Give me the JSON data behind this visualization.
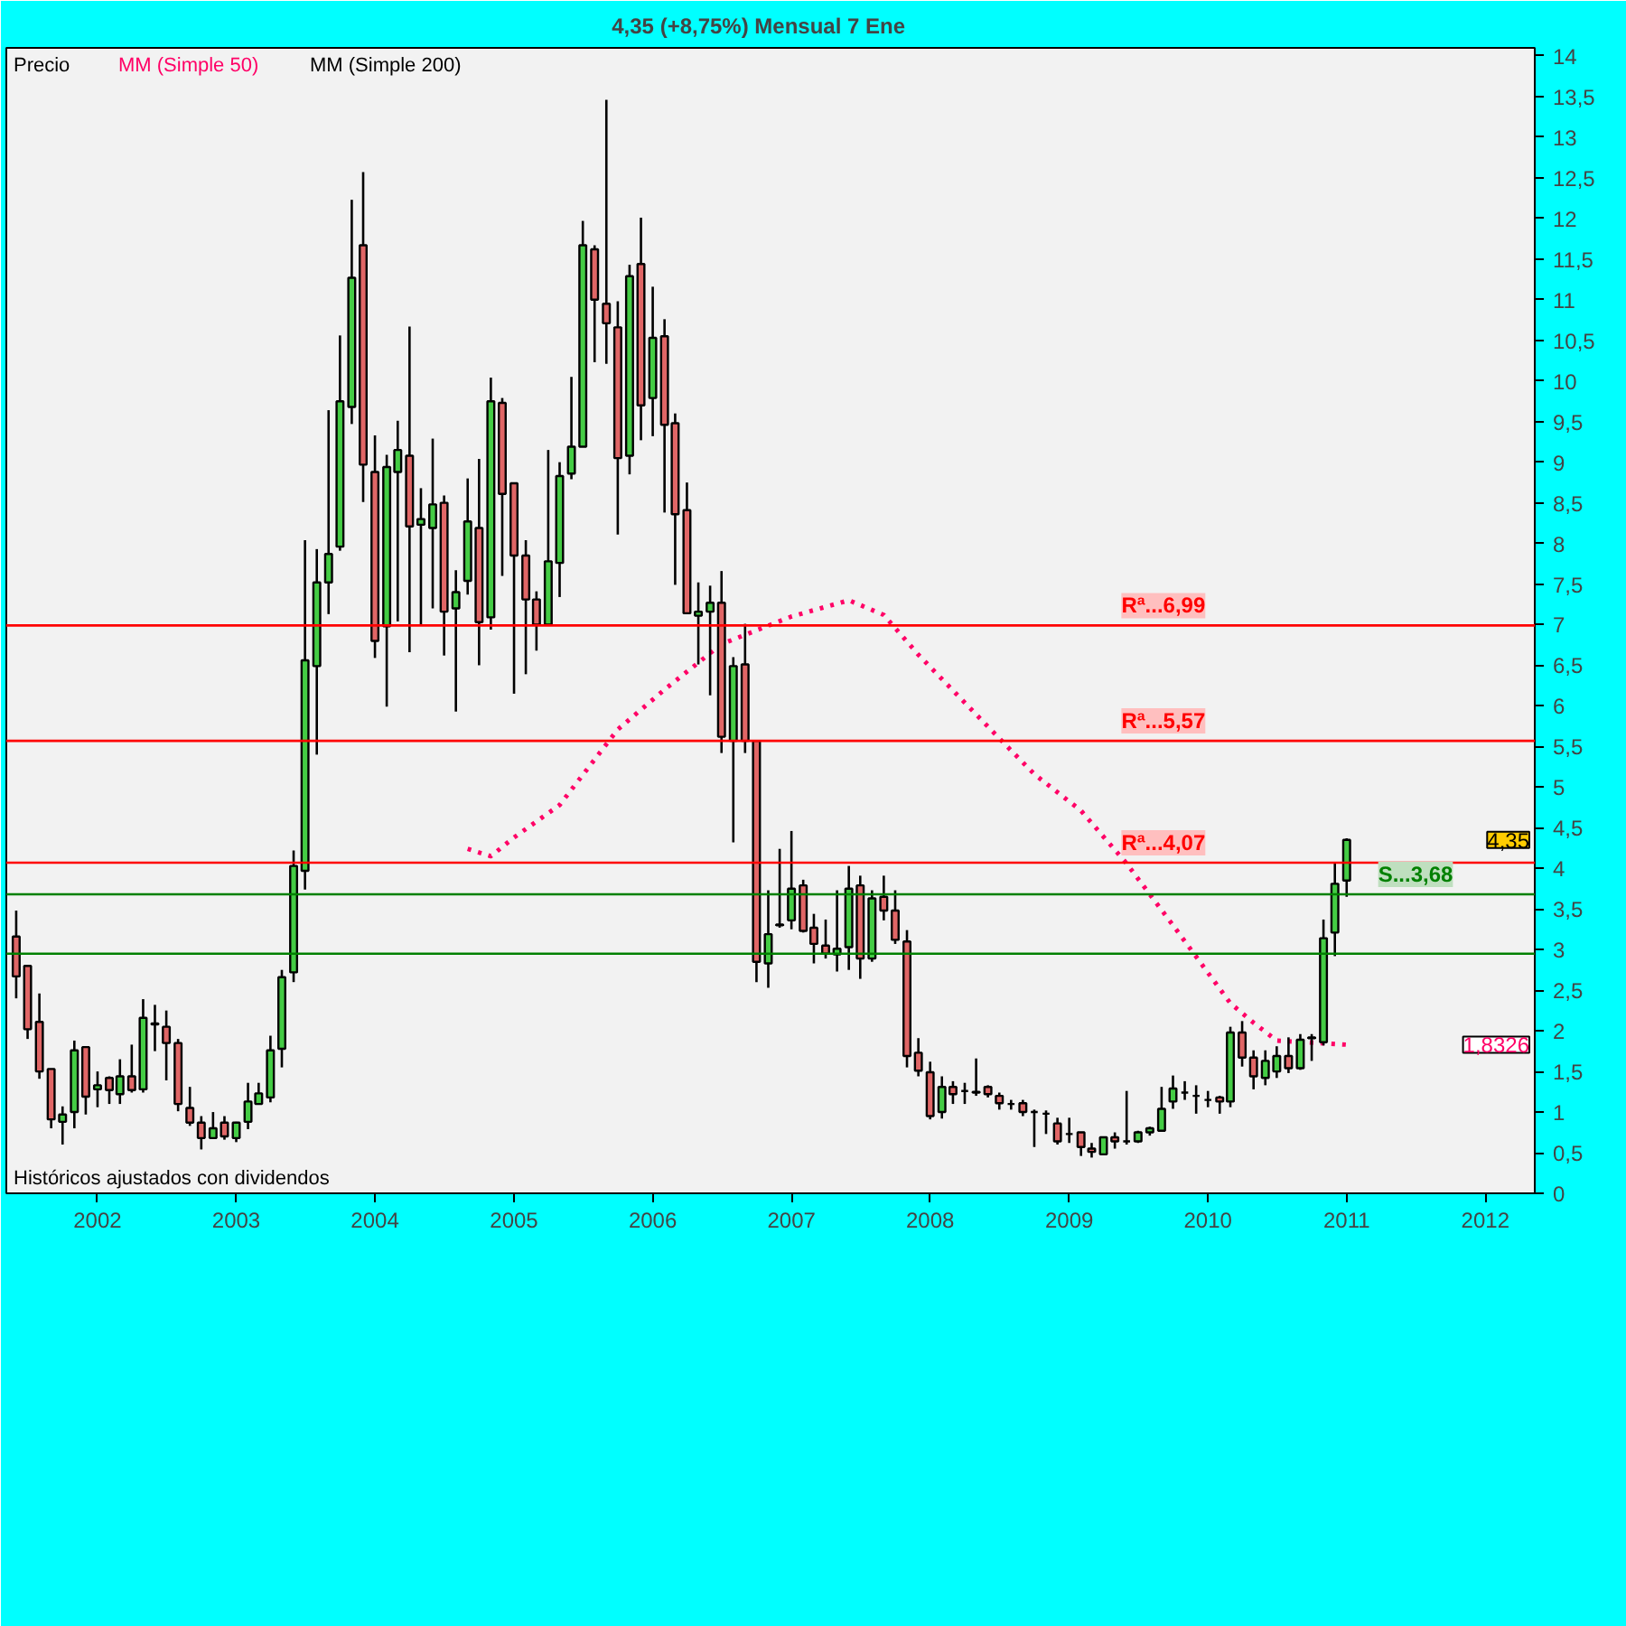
{
  "chart_data": {
    "type": "candlestick",
    "title": "4,35 (+8,75%)    Mensual  7 Ene",
    "x": [
      "2001-06",
      "2001-07",
      "2001-08",
      "2001-09",
      "2001-10",
      "2001-11",
      "2001-12",
      "2002-01",
      "2002-02",
      "2002-03",
      "2002-04",
      "2002-05",
      "2002-06",
      "2002-07",
      "2002-08",
      "2002-09",
      "2002-10",
      "2002-11",
      "2002-12",
      "2003-01",
      "2003-02",
      "2003-03",
      "2003-04",
      "2003-05",
      "2003-06",
      "2003-07",
      "2003-08",
      "2003-09",
      "2003-10",
      "2003-11",
      "2003-12",
      "2004-01",
      "2004-02",
      "2004-03",
      "2004-04",
      "2004-05",
      "2004-06",
      "2004-07",
      "2004-08",
      "2004-09",
      "2004-10",
      "2004-11",
      "2004-12",
      "2005-01",
      "2005-02",
      "2005-03",
      "2005-04",
      "2005-05",
      "2005-06",
      "2005-07",
      "2005-08",
      "2005-09",
      "2005-10",
      "2005-11",
      "2005-12",
      "2006-01",
      "2006-02",
      "2006-03",
      "2006-04",
      "2006-05",
      "2006-06",
      "2006-07",
      "2006-08",
      "2006-09",
      "2006-10",
      "2006-11",
      "2006-12",
      "2007-01",
      "2007-02",
      "2007-03",
      "2007-04",
      "2007-05",
      "2007-06",
      "2007-07",
      "2007-08",
      "2007-09",
      "2007-10",
      "2007-11",
      "2007-12",
      "2008-01",
      "2008-02",
      "2008-03",
      "2008-04",
      "2008-05",
      "2008-06",
      "2008-07",
      "2008-08",
      "2008-09",
      "2008-10",
      "2008-11",
      "2008-12",
      "2009-01",
      "2009-02",
      "2009-03",
      "2009-04",
      "2009-05",
      "2009-06",
      "2009-07",
      "2009-08",
      "2009-09",
      "2009-10",
      "2009-11",
      "2009-12",
      "2010-01",
      "2010-02",
      "2010-03",
      "2010-04",
      "2010-05",
      "2010-06",
      "2010-07",
      "2010-08",
      "2010-09",
      "2010-10",
      "2010-11",
      "2010-12",
      "2011-01"
    ],
    "ohlc": [
      [
        3.16,
        3.48,
        2.4,
        2.67
      ],
      [
        2.8,
        2.8,
        1.9,
        2.02
      ],
      [
        2.11,
        2.46,
        1.41,
        1.5
      ],
      [
        1.53,
        1.53,
        0.8,
        0.91
      ],
      [
        0.88,
        1.07,
        0.6,
        0.97
      ],
      [
        1.0,
        1.88,
        0.8,
        1.76
      ],
      [
        1.8,
        1.8,
        0.97,
        1.19
      ],
      [
        1.28,
        1.5,
        1.06,
        1.33
      ],
      [
        1.42,
        1.44,
        1.1,
        1.27
      ],
      [
        1.22,
        1.65,
        1.1,
        1.44
      ],
      [
        1.44,
        1.83,
        1.24,
        1.27
      ],
      [
        1.28,
        2.39,
        1.24,
        2.16
      ],
      [
        2.08,
        2.32,
        1.75,
        2.09
      ],
      [
        2.05,
        2.25,
        1.39,
        1.85
      ],
      [
        1.85,
        1.9,
        1.01,
        1.1
      ],
      [
        1.05,
        1.31,
        0.83,
        0.87
      ],
      [
        0.87,
        0.95,
        0.54,
        0.68
      ],
      [
        0.68,
        1.0,
        0.68,
        0.8
      ],
      [
        0.87,
        0.95,
        0.66,
        0.7
      ],
      [
        0.68,
        0.88,
        0.63,
        0.87
      ],
      [
        0.88,
        1.36,
        0.79,
        1.13
      ],
      [
        1.1,
        1.36,
        1.1,
        1.23
      ],
      [
        1.18,
        1.94,
        1.12,
        1.76
      ],
      [
        1.78,
        2.75,
        1.55,
        2.66
      ],
      [
        2.72,
        4.22,
        2.6,
        4.03
      ],
      [
        3.97,
        8.04,
        3.74,
        6.56
      ],
      [
        6.49,
        7.93,
        5.4,
        7.52
      ],
      [
        7.52,
        9.64,
        7.13,
        7.87
      ],
      [
        7.96,
        10.56,
        7.91,
        9.75
      ],
      [
        9.68,
        12.23,
        9.47,
        11.27
      ],
      [
        11.67,
        12.57,
        8.51,
        8.97
      ],
      [
        8.88,
        9.33,
        6.59,
        6.8
      ],
      [
        6.98,
        9.09,
        5.99,
        8.94
      ],
      [
        8.88,
        9.51,
        7.04,
        9.15
      ],
      [
        9.08,
        10.67,
        6.66,
        8.21
      ],
      [
        8.23,
        8.68,
        7.0,
        8.3
      ],
      [
        8.19,
        9.29,
        7.2,
        8.48
      ],
      [
        8.5,
        8.59,
        6.62,
        7.16
      ],
      [
        7.2,
        7.67,
        5.93,
        7.4
      ],
      [
        7.54,
        8.8,
        7.37,
        8.27
      ],
      [
        8.19,
        9.04,
        6.5,
        7.03
      ],
      [
        7.09,
        10.04,
        6.94,
        9.75
      ],
      [
        9.73,
        9.79,
        7.6,
        8.61
      ],
      [
        8.74,
        8.74,
        6.15,
        7.85
      ],
      [
        7.85,
        8.04,
        6.39,
        7.31
      ],
      [
        7.31,
        7.41,
        6.68,
        7.0
      ],
      [
        7.0,
        9.15,
        7.0,
        7.78
      ],
      [
        7.76,
        9.0,
        7.34,
        8.83
      ],
      [
        8.86,
        10.05,
        8.79,
        9.19
      ],
      [
        9.19,
        11.97,
        9.19,
        11.67
      ],
      [
        11.62,
        11.67,
        10.23,
        11.0
      ],
      [
        10.95,
        13.46,
        10.21,
        10.71
      ],
      [
        10.66,
        10.98,
        8.11,
        9.05
      ],
      [
        9.08,
        11.43,
        8.85,
        11.29
      ],
      [
        11.44,
        12.01,
        9.27,
        9.7
      ],
      [
        9.79,
        11.16,
        9.32,
        10.53
      ],
      [
        10.55,
        10.76,
        8.38,
        9.46
      ],
      [
        9.48,
        9.6,
        7.49,
        8.36
      ],
      [
        8.41,
        8.75,
        7.14,
        7.14
      ],
      [
        7.11,
        7.52,
        6.51,
        7.16
      ],
      [
        7.16,
        7.48,
        6.13,
        7.27
      ],
      [
        7.27,
        7.66,
        5.42,
        5.62
      ],
      [
        5.57,
        6.6,
        4.32,
        6.49
      ],
      [
        6.51,
        7.01,
        5.42,
        5.57
      ],
      [
        5.57,
        5.57,
        2.6,
        2.85
      ],
      [
        2.83,
        3.73,
        2.53,
        3.19
      ],
      [
        3.3,
        4.24,
        3.27,
        3.31
      ],
      [
        3.36,
        4.46,
        3.25,
        3.75
      ],
      [
        3.79,
        3.86,
        3.21,
        3.23
      ],
      [
        3.27,
        3.44,
        2.83,
        3.07
      ],
      [
        3.05,
        3.37,
        2.89,
        2.95
      ],
      [
        2.94,
        3.73,
        2.73,
        3.01
      ],
      [
        3.03,
        4.03,
        2.75,
        3.75
      ],
      [
        3.79,
        3.91,
        2.64,
        2.89
      ],
      [
        2.89,
        3.73,
        2.85,
        3.63
      ],
      [
        3.65,
        3.91,
        3.36,
        3.48
      ],
      [
        3.48,
        3.73,
        3.07,
        3.12
      ],
      [
        3.1,
        3.24,
        1.55,
        1.69
      ],
      [
        1.73,
        1.91,
        1.44,
        1.51
      ],
      [
        1.49,
        1.62,
        0.91,
        0.95
      ],
      [
        1.0,
        1.44,
        0.92,
        1.31
      ],
      [
        1.31,
        1.38,
        1.1,
        1.22
      ],
      [
        1.26,
        1.36,
        1.1,
        1.26
      ],
      [
        1.25,
        1.66,
        1.2,
        1.24
      ],
      [
        1.31,
        1.33,
        1.18,
        1.22
      ],
      [
        1.2,
        1.24,
        1.03,
        1.11
      ],
      [
        1.1,
        1.15,
        1.03,
        1.1
      ],
      [
        1.11,
        1.15,
        0.95,
        1.0
      ],
      [
        1.0,
        1.03,
        0.57,
        1.0
      ],
      [
        0.98,
        1.02,
        0.73,
        0.98
      ],
      [
        0.86,
        0.93,
        0.6,
        0.64
      ],
      [
        0.73,
        0.93,
        0.62,
        0.73
      ],
      [
        0.75,
        0.75,
        0.46,
        0.57
      ],
      [
        0.55,
        0.62,
        0.44,
        0.51
      ],
      [
        0.48,
        0.69,
        0.48,
        0.69
      ],
      [
        0.69,
        0.75,
        0.55,
        0.64
      ],
      [
        0.64,
        1.26,
        0.6,
        0.64
      ],
      [
        0.64,
        0.77,
        0.62,
        0.75
      ],
      [
        0.75,
        0.82,
        0.71,
        0.8
      ],
      [
        0.77,
        1.31,
        0.77,
        1.04
      ],
      [
        1.13,
        1.45,
        1.04,
        1.29
      ],
      [
        1.24,
        1.38,
        1.15,
        1.24
      ],
      [
        1.2,
        1.33,
        0.98,
        1.2
      ],
      [
        1.15,
        1.26,
        1.06,
        1.15
      ],
      [
        1.18,
        1.2,
        0.98,
        1.13
      ],
      [
        1.13,
        2.05,
        1.06,
        1.98
      ],
      [
        1.98,
        2.12,
        1.56,
        1.67
      ],
      [
        1.67,
        1.76,
        1.28,
        1.44
      ],
      [
        1.42,
        1.76,
        1.33,
        1.63
      ],
      [
        1.5,
        1.81,
        1.42,
        1.69
      ],
      [
        1.69,
        1.92,
        1.48,
        1.54
      ],
      [
        1.54,
        1.96,
        1.52,
        1.89
      ],
      [
        1.91,
        1.96,
        1.63,
        1.92
      ],
      [
        1.86,
        3.37,
        1.82,
        3.14
      ],
      [
        3.21,
        4.08,
        2.92,
        3.81
      ],
      [
        3.85,
        4.37,
        3.65,
        4.35
      ]
    ],
    "series": [
      {
        "type": "line",
        "name": "MM (Simple 50)",
        "color": "#ff0066",
        "line_style": "dotted",
        "x": [
          "2004-09",
          "2004-11",
          "2005-01",
          "2005-05",
          "2005-10",
          "2006-02",
          "2006-07",
          "2007-01",
          "2007-06",
          "2007-09",
          "2007-12",
          "2008-07",
          "2008-10",
          "2009-02",
          "2009-06",
          "2009-10",
          "2010-03",
          "2010-05",
          "2010-07",
          "2011-01"
        ],
        "values": [
          4.24,
          4.15,
          4.38,
          4.78,
          5.71,
          6.2,
          6.76,
          7.1,
          7.3,
          7.12,
          6.63,
          5.6,
          5.16,
          4.71,
          4.06,
          3.3,
          2.34,
          2.1,
          1.88,
          1.83
        ]
      }
    ],
    "xlim": [
      "2001-05-06",
      "2012-05-10"
    ],
    "xticks": [
      "2002",
      "2003",
      "2004",
      "2005",
      "2006",
      "2007",
      "2008",
      "2009",
      "2010",
      "2011",
      "2012"
    ],
    "ylim": [
      0,
      14.1
    ],
    "yticks": [
      0,
      {
        "value": 0.5,
        "label": "0,5"
      },
      1,
      {
        "value": 1.5,
        "label": "1,5"
      },
      2,
      {
        "value": 2.5,
        "label": "2,5"
      },
      3,
      {
        "value": 3.5,
        "label": "3,5"
      },
      4,
      {
        "value": 4.5,
        "label": "4,5"
      },
      5,
      {
        "value": 5.5,
        "label": "5,5"
      },
      6,
      {
        "value": 6.5,
        "label": "6,5"
      },
      7,
      {
        "value": 7.5,
        "label": "7,5"
      },
      8,
      {
        "value": 8.5,
        "label": "8,5"
      },
      9,
      {
        "value": 9.5,
        "label": "9,5"
      },
      10,
      {
        "value": 10.5,
        "label": "10,5"
      },
      11,
      {
        "value": 11.5,
        "label": "11,5"
      },
      12,
      {
        "value": 12.5,
        "label": "12,5"
      },
      13,
      {
        "value": 13.5,
        "label": "13,5"
      },
      14
    ],
    "ref_lines": [
      {
        "axis": "y",
        "value": 6.99,
        "label": "Rª...6,99",
        "color": "#ff0000"
      },
      {
        "axis": "y",
        "value": 5.57,
        "label": "Rª...5,57",
        "color": "#ff0000"
      },
      {
        "axis": "y",
        "value": 4.07,
        "label": "Rª...4,07",
        "color": "#ff0000"
      },
      {
        "axis": "y",
        "value": 3.68,
        "label": "S...3,68",
        "color": "#008000"
      },
      {
        "axis": "y",
        "value": 2.95,
        "label": null,
        "color": "#008000"
      }
    ],
    "annotations": [
      "Precio",
      "MM (Simple 200)",
      "Históricos ajustados con dividendos",
      "4,35",
      "1,8326"
    ],
    "legend": "top left",
    "grid": false
  }
}
